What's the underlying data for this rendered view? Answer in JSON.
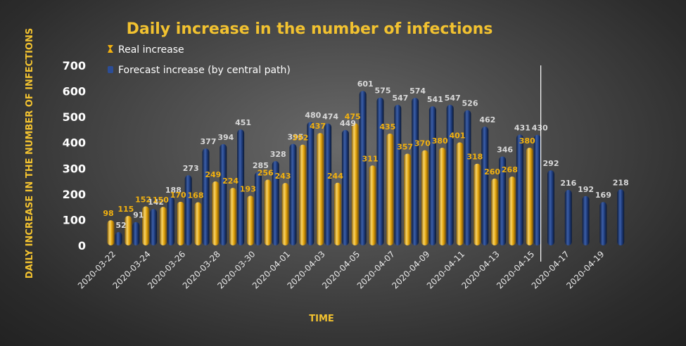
{
  "chart_data": {
    "type": "bar",
    "title": "Daily increase in the number of infections",
    "ylabel": "DAILY INCREASE IN THE NUMBER OF INFECTIONS",
    "xlabel": "TIME",
    "ylim": [
      0,
      700
    ],
    "yticks": [
      0,
      100,
      200,
      300,
      400,
      500,
      600,
      700
    ],
    "categories": [
      "2020-03-22",
      "2020-03-23",
      "2020-03-24",
      "2020-03-25",
      "2020-03-26",
      "2020-03-27",
      "2020-03-28",
      "2020-03-29",
      "2020-03-30",
      "2020-03-31",
      "2020-04-01",
      "2020-04-02",
      "2020-04-03",
      "2020-04-04",
      "2020-04-05",
      "2020-04-06",
      "2020-04-07",
      "2020-04-08",
      "2020-04-09",
      "2020-04-10",
      "2020-04-11",
      "2020-04-12",
      "2020-04-13",
      "2020-04-14",
      "2020-04-15",
      "2020-04-16",
      "2020-04-17",
      "2020-04-18",
      "2020-04-19",
      "2020-04-20"
    ],
    "xtick_labels": [
      "2020-03-22",
      "2020-03-24",
      "2020-03-26",
      "2020-03-28",
      "2020-03-30",
      "2020-04-01",
      "2020-04-03",
      "2020-04-05",
      "2020-04-07",
      "2020-04-09",
      "2020-04-11",
      "2020-04-13",
      "2020-04-15",
      "2020-04-17",
      "2020-04-19"
    ],
    "series": [
      {
        "name": "Real increase",
        "color": "#f2b10f",
        "values": [
          98,
          115,
          152,
          150,
          170,
          168,
          249,
          224,
          193,
          256,
          243,
          392,
          437,
          244,
          475,
          311,
          435,
          357,
          370,
          380,
          401,
          318,
          260,
          268,
          380,
          null,
          null,
          null,
          null,
          null
        ]
      },
      {
        "name": "Forecast increase (by central path)",
        "color": "#1f3a78",
        "values": [
          52,
          91,
          142,
          188,
          273,
          377,
          394,
          451,
          285,
          328,
          395,
          480,
          474,
          449,
          601,
          575,
          547,
          574,
          541,
          547,
          526,
          462,
          346,
          431,
          430,
          292,
          216,
          192,
          169,
          218
        ]
      }
    ],
    "divider_after": "2020-04-16",
    "grid": false,
    "legend_position": "top-left",
    "colors": {
      "title": "#f2c230",
      "axis_title": "#f2c230",
      "real_label": "#f2b10f",
      "forecast_label": "#d9d9d9"
    }
  }
}
